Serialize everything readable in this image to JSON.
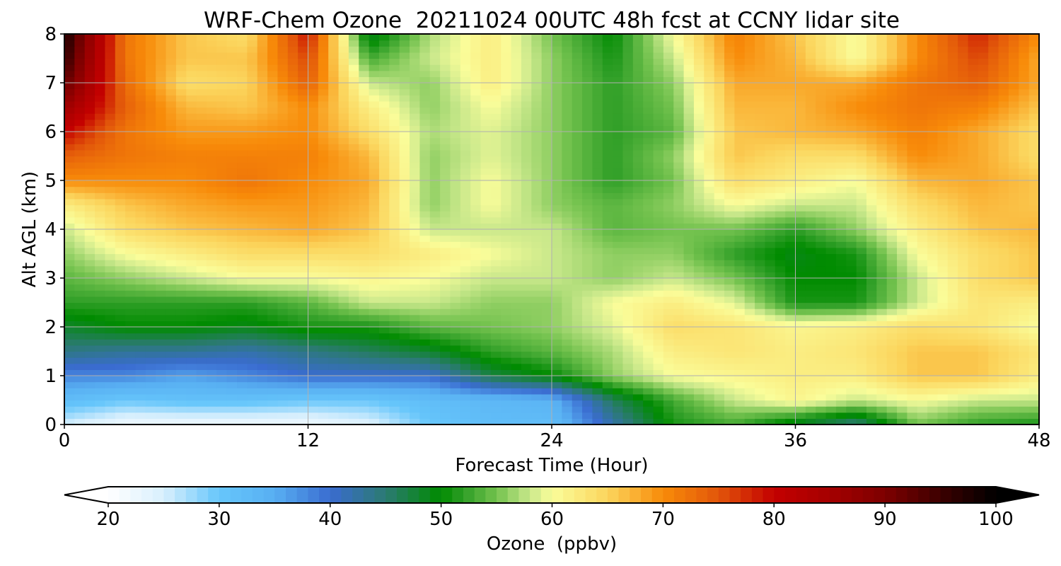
{
  "chart_data": {
    "type": "heatmap",
    "title": "WRF-Chem Ozone  20211024 00UTC 48h fcst at CCNY lidar site",
    "xlabel": "Forecast Time (Hour)",
    "ylabel": "Alt AGL (km)",
    "xlim": [
      0,
      48
    ],
    "ylim": [
      0,
      8
    ],
    "x_ticks": [
      0,
      12,
      24,
      36,
      48
    ],
    "y_ticks": [
      0,
      1,
      2,
      3,
      4,
      5,
      6,
      7,
      8
    ],
    "grid": true,
    "colorbar": {
      "label": "Ozone  (ppbv)",
      "range": [
        20,
        100
      ],
      "ticks": [
        20,
        30,
        40,
        50,
        60,
        70,
        80,
        90,
        100
      ],
      "extend": "both",
      "orientation": "horizontal",
      "placement": "bottom",
      "colors": [
        {
          "v": 20,
          "c": "#ffffff"
        },
        {
          "v": 25,
          "c": "#d8effd"
        },
        {
          "v": 30,
          "c": "#66c6fb"
        },
        {
          "v": 35,
          "c": "#58aff2"
        },
        {
          "v": 40,
          "c": "#3a6cd0"
        },
        {
          "v": 45,
          "c": "#2b7a72"
        },
        {
          "v": 50,
          "c": "#008b00"
        },
        {
          "v": 52,
          "c": "#2e9e26"
        },
        {
          "v": 55,
          "c": "#73c24e"
        },
        {
          "v": 58,
          "c": "#c9e88b"
        },
        {
          "v": 60,
          "c": "#fafd9a"
        },
        {
          "v": 65,
          "c": "#fbd55d"
        },
        {
          "v": 70,
          "c": "#f88b09"
        },
        {
          "v": 75,
          "c": "#e2560a"
        },
        {
          "v": 80,
          "c": "#c30000"
        },
        {
          "v": 85,
          "c": "#a50000"
        },
        {
          "v": 90,
          "c": "#7d0000"
        },
        {
          "v": 95,
          "c": "#3c0000"
        },
        {
          "v": 100,
          "c": "#000000"
        }
      ]
    },
    "x": [
      0,
      3,
      6,
      9,
      12,
      15,
      18,
      21,
      24,
      27,
      30,
      33,
      36,
      39,
      42,
      45,
      48
    ],
    "y": [
      0,
      0.5,
      1,
      1.5,
      2,
      2.5,
      3,
      3.5,
      4,
      4.5,
      5,
      5.5,
      6,
      6.5,
      7,
      7.5,
      8
    ],
    "z": [
      [
        25,
        22,
        22,
        22,
        22,
        24,
        30,
        32,
        32,
        42,
        51,
        53,
        48,
        44,
        55,
        52,
        51
      ],
      [
        32,
        30,
        31,
        31,
        30,
        30,
        32,
        33,
        34,
        46,
        53,
        58,
        61,
        58,
        60,
        58,
        58
      ],
      [
        38,
        38,
        36,
        38,
        40,
        40,
        40,
        47,
        50,
        56,
        60,
        61,
        62,
        62,
        66,
        66,
        62
      ],
      [
        44,
        43,
        43,
        42,
        44,
        46,
        48,
        52,
        54,
        57,
        62,
        63,
        62,
        63,
        66,
        66,
        63
      ],
      [
        48,
        50,
        50,
        49,
        51,
        51,
        54,
        55,
        56,
        59,
        64,
        63,
        61,
        62,
        64,
        63,
        60
      ],
      [
        52,
        52,
        52,
        52,
        54,
        58,
        58,
        56,
        56,
        60,
        62,
        59,
        51,
        51,
        58,
        63,
        62
      ],
      [
        54,
        56,
        58,
        60,
        60,
        61,
        60,
        58,
        58,
        56,
        58,
        55,
        50,
        50,
        58,
        64,
        66
      ],
      [
        56,
        60,
        62,
        64,
        64,
        64,
        62,
        60,
        58,
        56,
        56,
        52,
        49,
        51,
        60,
        64,
        66
      ],
      [
        58,
        64,
        66,
        67,
        68,
        66,
        58,
        58,
        58,
        54,
        55,
        55,
        52,
        56,
        62,
        66,
        67
      ],
      [
        62,
        66,
        68,
        69,
        69,
        67,
        56,
        60,
        56,
        54,
        56,
        60,
        58,
        58,
        64,
        67,
        66
      ],
      [
        70,
        70,
        70,
        72,
        70,
        68,
        56,
        60,
        56,
        52,
        55,
        64,
        62,
        60,
        67,
        68,
        66
      ],
      [
        74,
        72,
        71,
        71,
        71,
        67,
        56,
        59,
        56,
        52,
        56,
        66,
        64,
        64,
        70,
        68,
        64
      ],
      [
        80,
        72,
        69,
        69,
        70,
        64,
        57,
        59,
        56,
        52,
        54,
        66,
        67,
        68,
        71,
        68,
        64
      ],
      [
        86,
        74,
        67,
        66,
        70,
        62,
        56,
        60,
        56,
        52,
        55,
        67,
        67,
        70,
        72,
        71,
        66
      ],
      [
        92,
        73,
        64,
        65,
        74,
        58,
        56,
        62,
        56,
        52,
        56,
        68,
        68,
        68,
        72,
        74,
        68
      ],
      [
        96,
        72,
        66,
        66,
        76,
        53,
        58,
        62,
        56,
        51,
        58,
        70,
        67,
        60,
        70,
        76,
        68
      ],
      [
        98,
        72,
        66,
        64,
        79,
        48,
        57,
        62,
        55,
        50,
        60,
        71,
        66,
        60,
        70,
        78,
        70
      ]
    ]
  }
}
